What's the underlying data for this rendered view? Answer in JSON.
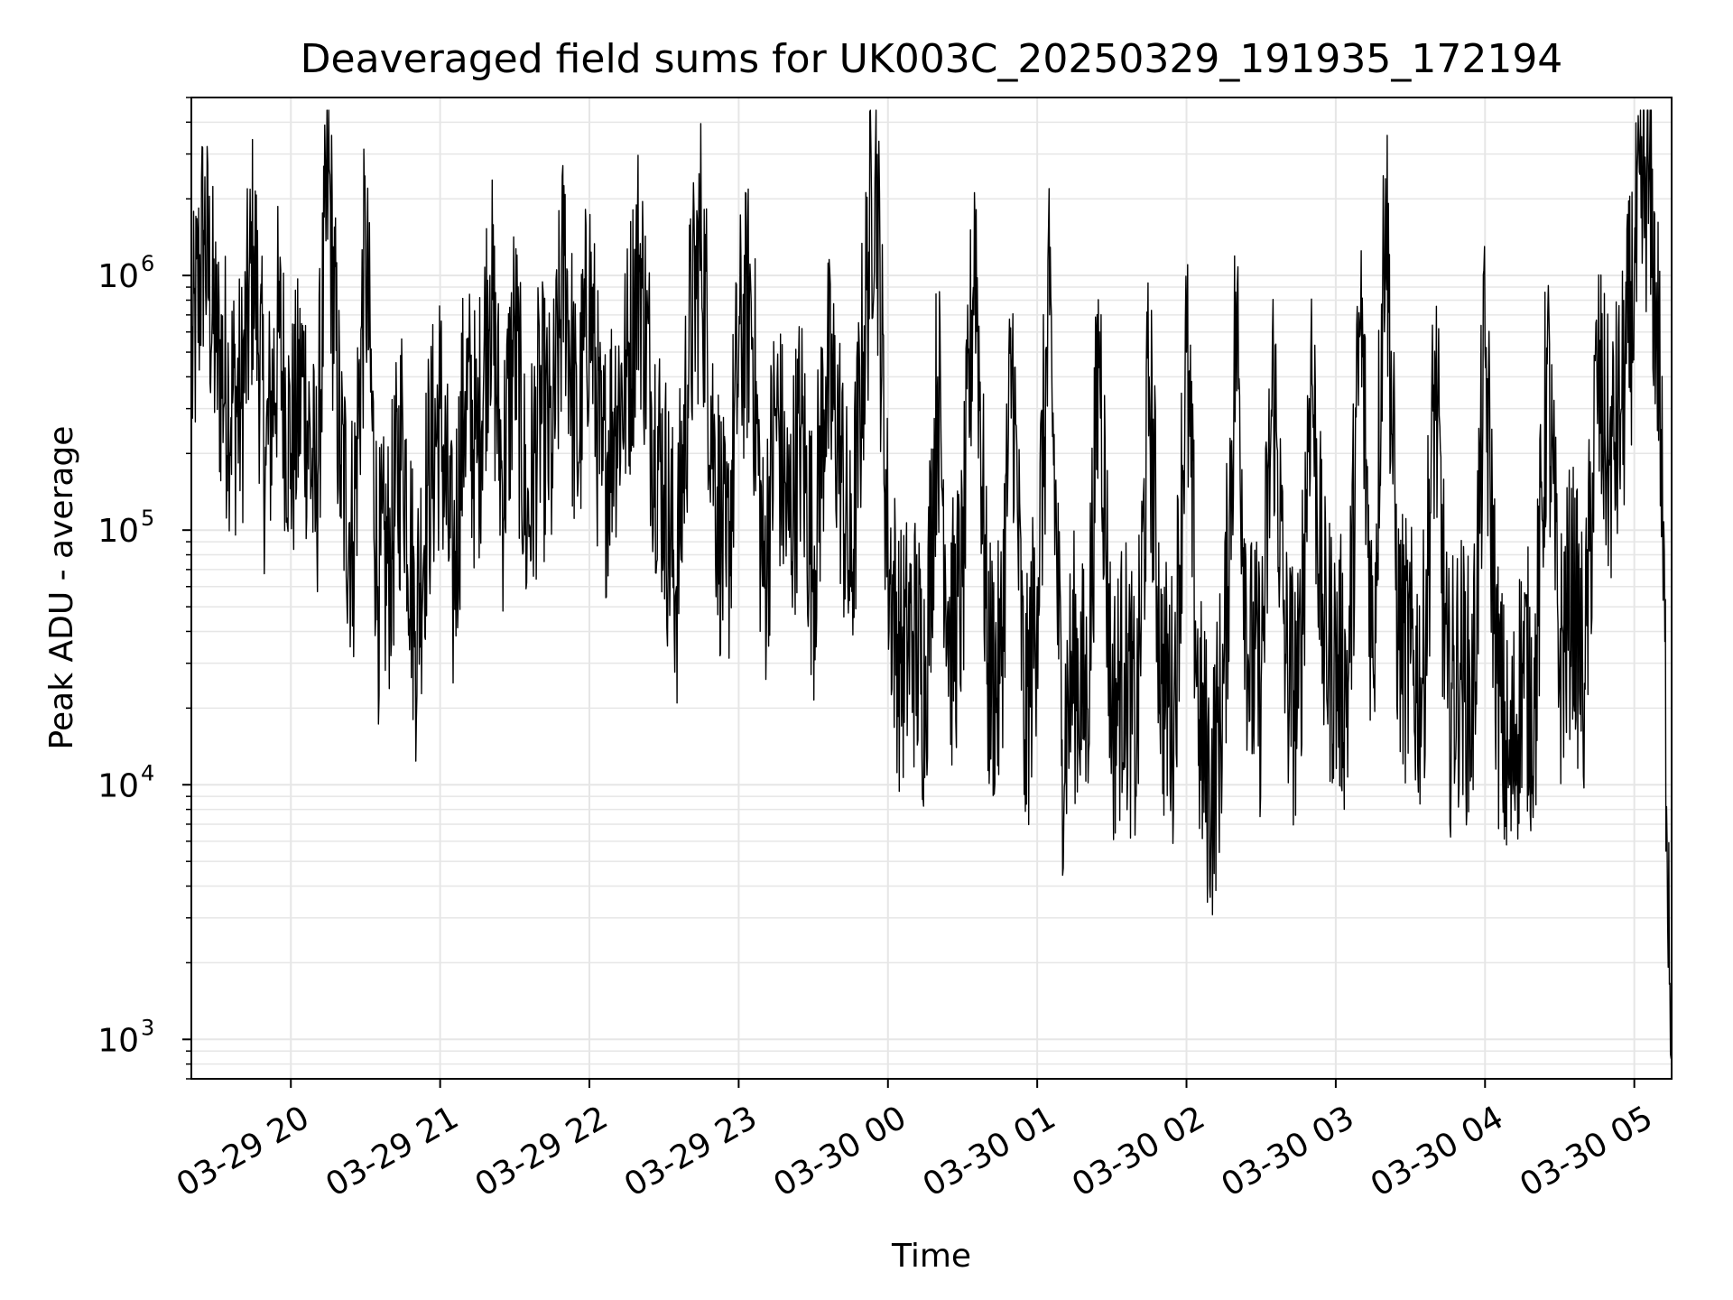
{
  "chart_data": {
    "type": "line",
    "title": "Deaveraged field sums for UK003C_20250329_191935_172194",
    "xlabel": "Time",
    "ylabel": "Peak ADU - average",
    "x_type": "time",
    "x_range": [
      "2025-03-29 19:20",
      "2025-03-30 05:15"
    ],
    "y_scale": "log",
    "ylim": [
      700,
      5000000
    ],
    "grid": true,
    "line_color": "#000000",
    "x_ticks": [
      {
        "t": "2025-03-29 20:00",
        "label": "03-29 20"
      },
      {
        "t": "2025-03-29 21:00",
        "label": "03-29 21"
      },
      {
        "t": "2025-03-29 22:00",
        "label": "03-29 22"
      },
      {
        "t": "2025-03-29 23:00",
        "label": "03-29 23"
      },
      {
        "t": "2025-03-30 00:00",
        "label": "03-30 00"
      },
      {
        "t": "2025-03-30 01:00",
        "label": "03-30 01"
      },
      {
        "t": "2025-03-30 02:00",
        "label": "03-30 02"
      },
      {
        "t": "2025-03-30 03:00",
        "label": "03-30 03"
      },
      {
        "t": "2025-03-30 04:00",
        "label": "03-30 04"
      },
      {
        "t": "2025-03-30 05:00",
        "label": "03-30 05"
      }
    ],
    "y_ticks": [
      {
        "v": 1000,
        "base": "10",
        "exp": "3"
      },
      {
        "v": 10000,
        "base": "10",
        "exp": "4"
      },
      {
        "v": 100000,
        "base": "10",
        "exp": "5"
      },
      {
        "v": 1000000,
        "base": "10",
        "exp": "6"
      }
    ],
    "series": [
      {
        "x": [
          "2025-03-29 19:20",
          "2025-03-29 19:25",
          "2025-03-29 19:30",
          "2025-03-29 19:35",
          "2025-03-29 19:40",
          "2025-03-29 19:45",
          "2025-03-29 19:50",
          "2025-03-29 19:55",
          "2025-03-29 20:00",
          "2025-03-29 20:05",
          "2025-03-29 20:10",
          "2025-03-29 20:15",
          "2025-03-29 20:20",
          "2025-03-29 20:25",
          "2025-03-29 20:30",
          "2025-03-29 20:35",
          "2025-03-29 20:40",
          "2025-03-29 20:45",
          "2025-03-29 20:50",
          "2025-03-29 20:55",
          "2025-03-29 21:00",
          "2025-03-29 21:05",
          "2025-03-29 21:10",
          "2025-03-29 21:15",
          "2025-03-29 21:20",
          "2025-03-29 21:25",
          "2025-03-29 21:30",
          "2025-03-29 21:35",
          "2025-03-29 21:40",
          "2025-03-29 21:45",
          "2025-03-29 21:50",
          "2025-03-29 21:55",
          "2025-03-29 22:00",
          "2025-03-29 22:05",
          "2025-03-29 22:10",
          "2025-03-29 22:15",
          "2025-03-29 22:20",
          "2025-03-29 22:25",
          "2025-03-29 22:30",
          "2025-03-29 22:35",
          "2025-03-29 22:40",
          "2025-03-29 22:45",
          "2025-03-29 22:50",
          "2025-03-29 22:55",
          "2025-03-29 23:00",
          "2025-03-29 23:05",
          "2025-03-29 23:10",
          "2025-03-29 23:15",
          "2025-03-29 23:20",
          "2025-03-29 23:25",
          "2025-03-29 23:30",
          "2025-03-29 23:35",
          "2025-03-29 23:40",
          "2025-03-29 23:45",
          "2025-03-29 23:50",
          "2025-03-29 23:55",
          "2025-03-30 00:00",
          "2025-03-30 00:05",
          "2025-03-30 00:10",
          "2025-03-30 00:15",
          "2025-03-30 00:20",
          "2025-03-30 00:25",
          "2025-03-30 00:30",
          "2025-03-30 00:35",
          "2025-03-30 00:40",
          "2025-03-30 00:45",
          "2025-03-30 00:50",
          "2025-03-30 00:55",
          "2025-03-30 01:00",
          "2025-03-30 01:05",
          "2025-03-30 01:10",
          "2025-03-30 01:15",
          "2025-03-30 01:20",
          "2025-03-30 01:25",
          "2025-03-30 01:30",
          "2025-03-30 01:35",
          "2025-03-30 01:40",
          "2025-03-30 01:45",
          "2025-03-30 01:50",
          "2025-03-30 01:55",
          "2025-03-30 02:00",
          "2025-03-30 02:05",
          "2025-03-30 02:10",
          "2025-03-30 02:15",
          "2025-03-30 02:20",
          "2025-03-30 02:25",
          "2025-03-30 02:30",
          "2025-03-30 02:35",
          "2025-03-30 02:40",
          "2025-03-30 02:45",
          "2025-03-30 02:50",
          "2025-03-30 02:55",
          "2025-03-30 03:00",
          "2025-03-30 03:05",
          "2025-03-30 03:10",
          "2025-03-30 03:15",
          "2025-03-30 03:20",
          "2025-03-30 03:25",
          "2025-03-30 03:30",
          "2025-03-30 03:35",
          "2025-03-30 03:40",
          "2025-03-30 03:45",
          "2025-03-30 03:50",
          "2025-03-30 03:55",
          "2025-03-30 04:00",
          "2025-03-30 04:05",
          "2025-03-30 04:10",
          "2025-03-30 04:15",
          "2025-03-30 04:20",
          "2025-03-30 04:25",
          "2025-03-30 04:30",
          "2025-03-30 04:35",
          "2025-03-30 04:40",
          "2025-03-30 04:45",
          "2025-03-30 04:50",
          "2025-03-30 04:55",
          "2025-03-30 05:00",
          "2025-03-30 05:05",
          "2025-03-30 05:10",
          "2025-03-30 05:15"
        ],
        "y": [
          400000,
          1500000,
          500000,
          350000,
          300000,
          1300000,
          180000,
          600000,
          200000,
          400000,
          120000,
          2600000,
          180000,
          90000,
          1300000,
          60000,
          80000,
          250000,
          40000,
          150000,
          300000,
          60000,
          350000,
          200000,
          1000000,
          150000,
          600000,
          100000,
          300000,
          200000,
          1200000,
          200000,
          900000,
          150000,
          300000,
          400000,
          1200000,
          300000,
          150000,
          60000,
          500000,
          1400000,
          200000,
          60000,
          500000,
          800000,
          60000,
          300000,
          100000,
          250000,
          70000,
          400000,
          250000,
          60000,
          500000,
          3200000,
          80000,
          30000,
          40000,
          25000,
          400000,
          35000,
          60000,
          1600000,
          30000,
          25000,
          500000,
          15000,
          60000,
          700000,
          15000,
          30000,
          20000,
          600000,
          18000,
          30000,
          15000,
          400000,
          25000,
          20000,
          500000,
          18000,
          9000,
          25000,
          700000,
          30000,
          25000,
          400000,
          30000,
          20000,
          500000,
          40000,
          30000,
          25000,
          700000,
          30000,
          2400000,
          40000,
          30000,
          25000,
          400000,
          20000,
          30000,
          20000,
          500000,
          25000,
          10000,
          30000,
          20000,
          450000,
          30000,
          60000,
          25000,
          400000,
          180000,
          300000,
          1000000,
          2500000,
          500000,
          1000
        ]
      }
    ]
  }
}
